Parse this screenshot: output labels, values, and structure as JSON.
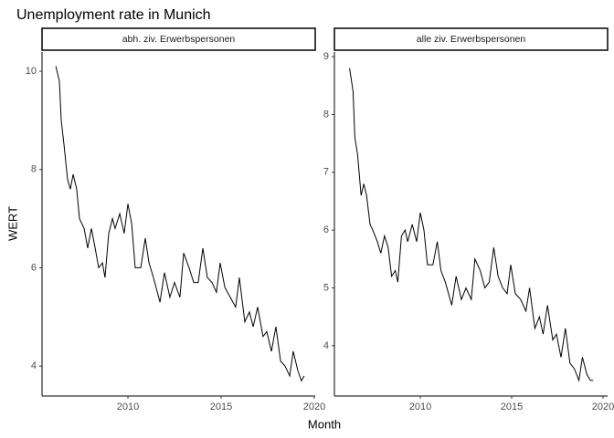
{
  "title": "Unemployment rate in Munich",
  "x_label": "Month",
  "y_label": "WERT",
  "chart_data": [
    {
      "type": "line",
      "title": "abh. ziv. Erwerbspersonen",
      "color": "#000000",
      "x": [
        2006.13,
        2006.32,
        2006.42,
        2006.57,
        2006.76,
        2006.91,
        2007.06,
        2007.25,
        2007.4,
        2007.65,
        2007.84,
        2008.04,
        2008.24,
        2008.43,
        2008.63,
        2008.77,
        2008.97,
        2009.17,
        2009.31,
        2009.56,
        2009.8,
        2010.0,
        2010.2,
        2010.39,
        2010.69,
        2010.93,
        2011.13,
        2011.37,
        2011.72,
        2011.96,
        2012.25,
        2012.5,
        2012.79,
        2012.99,
        2013.28,
        2013.53,
        2013.77,
        2014.02,
        2014.26,
        2014.51,
        2014.75,
        2014.95,
        2015.2,
        2015.49,
        2015.78,
        2015.98,
        2016.27,
        2016.52,
        2016.72,
        2016.96,
        2017.25,
        2017.45,
        2017.7,
        2017.94,
        2018.19,
        2018.43,
        2018.68,
        2018.87,
        2019.12,
        2019.31,
        2019.46
      ],
      "values": [
        10.1,
        9.8,
        9.0,
        8.5,
        7.8,
        7.6,
        7.9,
        7.6,
        7.0,
        6.8,
        6.4,
        6.8,
        6.4,
        6.0,
        6.1,
        5.8,
        6.7,
        7.0,
        6.8,
        7.1,
        6.7,
        7.3,
        6.9,
        6.0,
        6.0,
        6.6,
        6.1,
        5.8,
        5.3,
        5.9,
        5.4,
        5.7,
        5.4,
        6.3,
        6.0,
        5.7,
        5.7,
        6.4,
        5.8,
        5.7,
        5.5,
        6.1,
        5.6,
        5.4,
        5.2,
        5.8,
        4.9,
        5.1,
        4.8,
        5.2,
        4.6,
        4.7,
        4.3,
        4.8,
        4.1,
        4.0,
        3.8,
        4.3,
        3.9,
        3.7,
        3.8
      ],
      "xlim": [
        2005.39,
        2020.05
      ],
      "xticks": [
        2010,
        2015,
        2020
      ],
      "ylim": [
        3.39,
        10.39
      ],
      "yticks": [
        4,
        6,
        8,
        10
      ]
    },
    {
      "type": "line",
      "title": "alle ziv. Erwerbspersonen",
      "color": "#000000",
      "x": [
        2006.13,
        2006.32,
        2006.42,
        2006.57,
        2006.76,
        2006.91,
        2007.06,
        2007.25,
        2007.4,
        2007.65,
        2007.84,
        2008.04,
        2008.24,
        2008.43,
        2008.63,
        2008.77,
        2008.97,
        2009.17,
        2009.31,
        2009.56,
        2009.8,
        2010.0,
        2010.2,
        2010.39,
        2010.69,
        2010.93,
        2011.13,
        2011.37,
        2011.72,
        2011.96,
        2012.25,
        2012.5,
        2012.79,
        2012.99,
        2013.28,
        2013.53,
        2013.77,
        2014.02,
        2014.26,
        2014.51,
        2014.75,
        2014.95,
        2015.2,
        2015.49,
        2015.78,
        2015.98,
        2016.27,
        2016.52,
        2016.72,
        2016.96,
        2017.25,
        2017.45,
        2017.7,
        2017.94,
        2018.19,
        2018.43,
        2018.68,
        2018.87,
        2019.12,
        2019.31,
        2019.46
      ],
      "values": [
        8.8,
        8.4,
        7.6,
        7.3,
        6.6,
        6.8,
        6.6,
        6.1,
        6.0,
        5.8,
        5.6,
        5.9,
        5.7,
        5.2,
        5.3,
        5.1,
        5.9,
        6.0,
        5.8,
        6.1,
        5.8,
        6.3,
        6.0,
        5.4,
        5.4,
        5.8,
        5.3,
        5.1,
        4.7,
        5.2,
        4.8,
        5.0,
        4.8,
        5.5,
        5.3,
        5.0,
        5.1,
        5.7,
        5.2,
        5.0,
        4.9,
        5.4,
        4.9,
        4.8,
        4.6,
        5.0,
        4.3,
        4.5,
        4.2,
        4.7,
        4.1,
        4.2,
        3.8,
        4.3,
        3.7,
        3.6,
        3.4,
        3.8,
        3.5,
        3.4,
        3.4
      ],
      "xlim": [
        2005.3,
        2020.25
      ],
      "xticks": [
        2010,
        2015,
        2020
      ],
      "ylim": [
        3.13,
        9.08
      ],
      "yticks": [
        4,
        5,
        6,
        7,
        8,
        9
      ]
    }
  ]
}
